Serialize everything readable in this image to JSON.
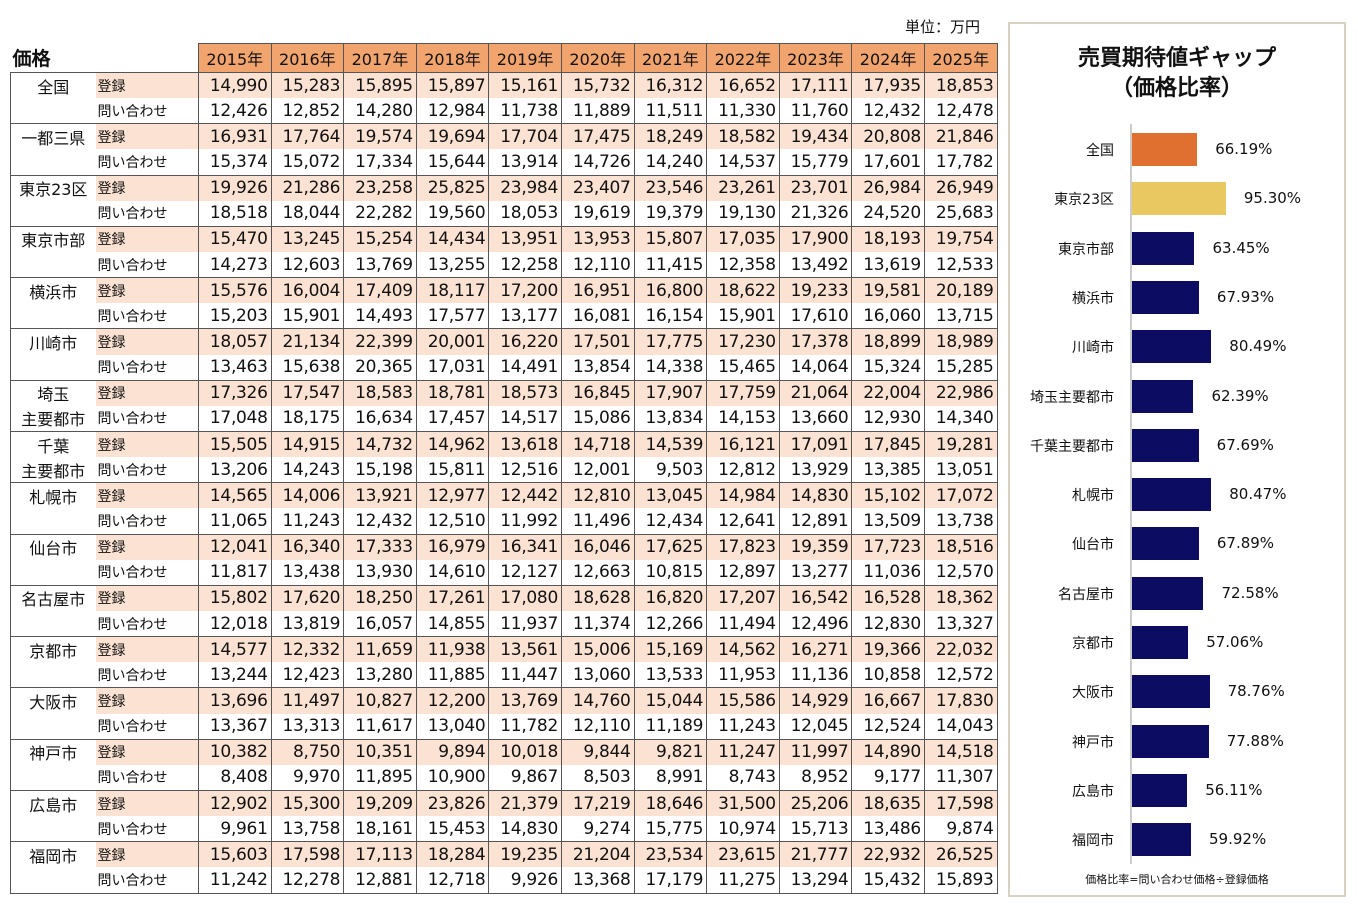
{
  "unit": "単位：万円",
  "table": {
    "title": "価格",
    "years": [
      "2015年",
      "2016年",
      "2017年",
      "2018年",
      "2019年",
      "2020年",
      "2021年",
      "2022年",
      "2023年",
      "2024年",
      "2025年"
    ],
    "row_types": [
      "登録",
      "問い合わせ"
    ],
    "regions": [
      {
        "name": [
          "全国"
        ],
        "registered": [
          "14,990",
          "15,283",
          "15,895",
          "15,897",
          "15,161",
          "15,732",
          "16,312",
          "16,652",
          "17,111",
          "17,935",
          "18,853"
        ],
        "inquiry": [
          "12,426",
          "12,852",
          "14,280",
          "12,984",
          "11,738",
          "11,889",
          "11,511",
          "11,330",
          "11,760",
          "12,432",
          "12,478"
        ]
      },
      {
        "name": [
          "一都三県"
        ],
        "registered": [
          "16,931",
          "17,764",
          "19,574",
          "19,694",
          "17,704",
          "17,475",
          "18,249",
          "18,582",
          "19,434",
          "20,808",
          "21,846"
        ],
        "inquiry": [
          "15,374",
          "15,072",
          "17,334",
          "15,644",
          "13,914",
          "14,726",
          "14,240",
          "14,537",
          "15,779",
          "17,601",
          "17,782"
        ]
      },
      {
        "name": [
          "東京23区"
        ],
        "registered": [
          "19,926",
          "21,286",
          "23,258",
          "25,825",
          "23,984",
          "23,407",
          "23,546",
          "23,261",
          "23,701",
          "26,984",
          "26,949"
        ],
        "inquiry": [
          "18,518",
          "18,044",
          "22,282",
          "19,560",
          "18,053",
          "19,619",
          "19,379",
          "19,130",
          "21,326",
          "24,520",
          "25,683"
        ]
      },
      {
        "name": [
          "東京市部"
        ],
        "registered": [
          "15,470",
          "13,245",
          "15,254",
          "14,434",
          "13,951",
          "13,953",
          "15,807",
          "17,035",
          "17,900",
          "18,193",
          "19,754"
        ],
        "inquiry": [
          "14,273",
          "12,603",
          "13,769",
          "13,255",
          "12,258",
          "12,110",
          "11,415",
          "12,358",
          "13,492",
          "13,619",
          "12,533"
        ]
      },
      {
        "name": [
          "横浜市"
        ],
        "registered": [
          "15,576",
          "16,004",
          "17,409",
          "18,117",
          "17,200",
          "16,951",
          "16,800",
          "18,622",
          "19,233",
          "19,581",
          "20,189"
        ],
        "inquiry": [
          "15,203",
          "15,901",
          "14,493",
          "17,577",
          "13,177",
          "16,081",
          "16,154",
          "15,901",
          "17,610",
          "16,060",
          "13,715"
        ]
      },
      {
        "name": [
          "川崎市"
        ],
        "registered": [
          "18,057",
          "21,134",
          "22,399",
          "20,001",
          "16,220",
          "17,501",
          "17,775",
          "17,230",
          "17,378",
          "18,899",
          "18,989"
        ],
        "inquiry": [
          "13,463",
          "15,638",
          "20,365",
          "17,031",
          "14,491",
          "13,854",
          "14,338",
          "15,465",
          "14,064",
          "15,324",
          "15,285"
        ]
      },
      {
        "name": [
          "埼玉",
          "主要都市"
        ],
        "registered": [
          "17,326",
          "17,547",
          "18,583",
          "18,781",
          "18,573",
          "16,845",
          "17,907",
          "17,759",
          "21,064",
          "22,004",
          "22,986"
        ],
        "inquiry": [
          "17,048",
          "18,175",
          "16,634",
          "17,457",
          "14,517",
          "15,086",
          "13,834",
          "14,153",
          "13,660",
          "12,930",
          "14,340"
        ]
      },
      {
        "name": [
          "千葉",
          "主要都市"
        ],
        "registered": [
          "15,505",
          "14,915",
          "14,732",
          "14,962",
          "13,618",
          "14,718",
          "14,539",
          "16,121",
          "17,091",
          "17,845",
          "19,281"
        ],
        "inquiry": [
          "13,206",
          "14,243",
          "15,198",
          "15,811",
          "12,516",
          "12,001",
          "9,503",
          "12,812",
          "13,929",
          "13,385",
          "13,051"
        ]
      },
      {
        "name": [
          "札幌市"
        ],
        "registered": [
          "14,565",
          "14,006",
          "13,921",
          "12,977",
          "12,442",
          "12,810",
          "13,045",
          "14,984",
          "14,830",
          "15,102",
          "17,072"
        ],
        "inquiry": [
          "11,065",
          "11,243",
          "12,432",
          "12,510",
          "11,992",
          "11,496",
          "12,434",
          "12,641",
          "12,891",
          "13,509",
          "13,738"
        ]
      },
      {
        "name": [
          "仙台市"
        ],
        "registered": [
          "12,041",
          "16,340",
          "17,333",
          "16,979",
          "16,341",
          "16,046",
          "17,625",
          "17,823",
          "19,359",
          "17,723",
          "18,516"
        ],
        "inquiry": [
          "11,817",
          "13,438",
          "13,930",
          "14,610",
          "12,127",
          "12,663",
          "10,815",
          "12,897",
          "13,277",
          "11,036",
          "12,570"
        ]
      },
      {
        "name": [
          "名古屋市"
        ],
        "registered": [
          "15,802",
          "17,620",
          "18,250",
          "17,261",
          "17,080",
          "18,628",
          "16,820",
          "17,207",
          "16,542",
          "16,528",
          "18,362"
        ],
        "inquiry": [
          "12,018",
          "13,819",
          "16,057",
          "14,855",
          "11,937",
          "11,374",
          "12,266",
          "11,494",
          "12,496",
          "12,830",
          "13,327"
        ]
      },
      {
        "name": [
          "京都市"
        ],
        "registered": [
          "14,577",
          "12,332",
          "11,659",
          "11,938",
          "13,561",
          "15,006",
          "15,169",
          "14,562",
          "16,271",
          "19,366",
          "22,032"
        ],
        "inquiry": [
          "13,244",
          "12,423",
          "13,280",
          "11,885",
          "11,447",
          "13,060",
          "13,533",
          "11,953",
          "11,136",
          "10,858",
          "12,572"
        ]
      },
      {
        "name": [
          "大阪市"
        ],
        "registered": [
          "13,696",
          "11,497",
          "10,827",
          "12,200",
          "13,769",
          "14,760",
          "15,044",
          "15,586",
          "14,929",
          "16,667",
          "17,830"
        ],
        "inquiry": [
          "13,367",
          "13,313",
          "11,617",
          "13,040",
          "11,782",
          "12,110",
          "11,189",
          "11,243",
          "12,045",
          "12,524",
          "14,043"
        ]
      },
      {
        "name": [
          "神戸市"
        ],
        "registered": [
          "10,382",
          "8,750",
          "10,351",
          "9,894",
          "10,018",
          "9,844",
          "9,821",
          "11,247",
          "11,997",
          "14,890",
          "14,518"
        ],
        "inquiry": [
          "8,408",
          "9,970",
          "11,895",
          "10,900",
          "9,867",
          "8,503",
          "8,991",
          "8,743",
          "8,952",
          "9,177",
          "11,307"
        ]
      },
      {
        "name": [
          "広島市"
        ],
        "registered": [
          "12,902",
          "15,300",
          "19,209",
          "23,826",
          "21,379",
          "17,219",
          "18,646",
          "31,500",
          "25,206",
          "18,635",
          "17,598"
        ],
        "inquiry": [
          "9,961",
          "13,758",
          "18,161",
          "15,453",
          "14,830",
          "9,274",
          "15,775",
          "10,974",
          "15,713",
          "13,486",
          "9,874"
        ]
      },
      {
        "name": [
          "福岡市"
        ],
        "registered": [
          "15,603",
          "17,598",
          "17,113",
          "18,284",
          "19,235",
          "21,204",
          "23,534",
          "23,615",
          "21,777",
          "22,932",
          "26,525"
        ],
        "inquiry": [
          "11,242",
          "12,278",
          "12,881",
          "12,718",
          "9,926",
          "13,368",
          "17,179",
          "11,275",
          "13,294",
          "15,432",
          "15,893"
        ]
      }
    ]
  },
  "colors": {
    "header": "#f2a46e",
    "registered_row": "#fbe2d2",
    "bar_national": "#e07030",
    "bar_tokyo23": "#e9c862",
    "bar_other": "#0c0c62"
  },
  "chart_data": {
    "type": "bar",
    "orientation": "horizontal",
    "title": "売買期待値ギャップ",
    "subtitle": "（価格比率）",
    "categories": [
      "全国",
      "東京23区",
      "東京市部",
      "横浜市",
      "川崎市",
      "埼玉主要都市",
      "千葉主要都市",
      "札幌市",
      "仙台市",
      "名古屋市",
      "京都市",
      "大阪市",
      "神戸市",
      "広島市",
      "福岡市"
    ],
    "values": [
      66.19,
      95.3,
      63.45,
      67.93,
      80.49,
      62.39,
      67.69,
      80.47,
      67.89,
      72.58,
      57.06,
      78.76,
      77.88,
      56.11,
      59.92
    ],
    "labels": [
      "66.19%",
      "95.30%",
      "63.45%",
      "67.93%",
      "80.49%",
      "62.39%",
      "67.69%",
      "80.47%",
      "67.89%",
      "72.58%",
      "57.06%",
      "78.76%",
      "77.88%",
      "56.11%",
      "59.92%"
    ],
    "bar_colors": [
      "#e07030",
      "#e9c862",
      "#0c0c62",
      "#0c0c62",
      "#0c0c62",
      "#0c0c62",
      "#0c0c62",
      "#0c0c62",
      "#0c0c62",
      "#0c0c62",
      "#0c0c62",
      "#0c0c62",
      "#0c0c62",
      "#0c0c62",
      "#0c0c62"
    ],
    "xlim": [
      0,
      100
    ],
    "grid": false,
    "note": "価格比率=問い合わせ価格÷登録価格"
  }
}
